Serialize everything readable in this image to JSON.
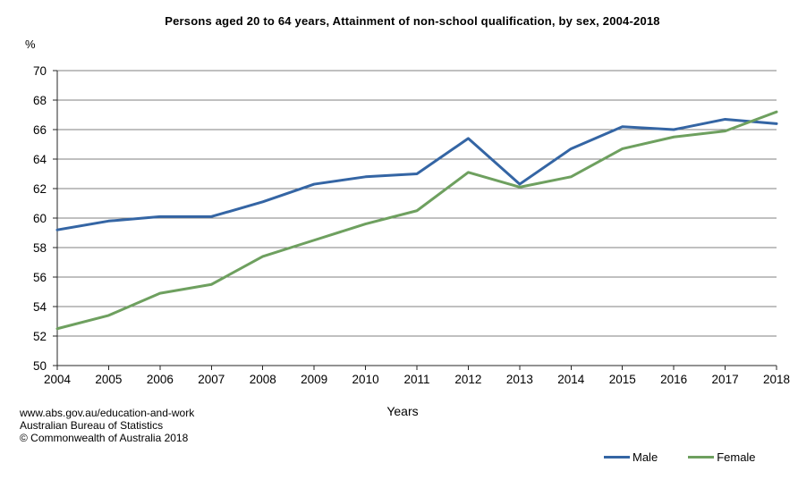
{
  "title": "Persons aged 20 to 64 years, Attainment of non-school qualification, by sex, 2004-2018",
  "y_axis_unit": "%",
  "x_axis_label": "Years",
  "footer": {
    "line1": "www.abs.gov.au/education-and-work",
    "line2": "Australian Bureau of Statistics",
    "line3": "© Commonwealth of Australia 2018"
  },
  "chart_data": {
    "type": "line",
    "title": "Persons aged 20 to 64 years, Attainment of non-school qualification, by sex, 2004-2018",
    "xlabel": "Years",
    "ylabel": "%",
    "x": [
      2004,
      2005,
      2006,
      2007,
      2008,
      2009,
      2010,
      2011,
      2012,
      2013,
      2014,
      2015,
      2016,
      2017,
      2018
    ],
    "series": [
      {
        "name": "Male",
        "color": "#3465A4",
        "values": [
          59.2,
          59.8,
          60.1,
          60.1,
          61.1,
          62.3,
          62.8,
          63.0,
          65.4,
          62.3,
          64.7,
          66.2,
          66.0,
          66.7,
          66.4
        ]
      },
      {
        "name": "Female",
        "color": "#6EA05F",
        "values": [
          52.5,
          53.4,
          54.9,
          55.5,
          57.4,
          58.5,
          59.6,
          60.5,
          63.1,
          62.1,
          62.8,
          64.7,
          65.5,
          65.9,
          67.2
        ]
      }
    ],
    "ylim": [
      50,
      70
    ],
    "ytick_step": 2,
    "grid": true,
    "grid_color": "#808080",
    "axis_color": "#262626",
    "legend_position": "bottom-right"
  }
}
